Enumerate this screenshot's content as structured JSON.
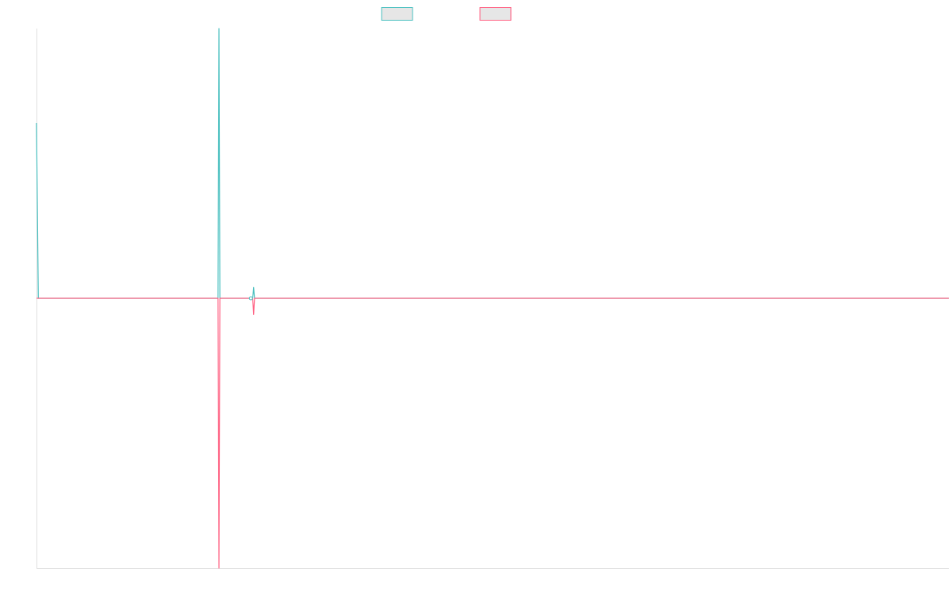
{
  "chart_data": {
    "type": "line",
    "title": "",
    "xlabel": "",
    "ylabel": "",
    "grid": false,
    "legend_position": "top-center",
    "xlim": [
      0,
      1000
    ],
    "ylim": [
      -100,
      100
    ],
    "series": [
      {
        "color": "#4bc0c0",
        "x": [
          0,
          2,
          196,
          198,
          199,
          200,
          201,
          202,
          204,
          234,
          235,
          236,
          237,
          238,
          239,
          240,
          1000
        ],
        "y": [
          65,
          0,
          0,
          0,
          0,
          100,
          0,
          0,
          0,
          0,
          0,
          0,
          0,
          4,
          0,
          0,
          0
        ]
      },
      {
        "color": "#ff6384",
        "x": [
          0,
          2,
          196,
          198,
          199,
          200,
          201,
          202,
          204,
          234,
          235,
          236,
          237,
          238,
          239,
          240,
          1000
        ],
        "y": [
          0,
          0,
          0,
          0,
          0,
          -100,
          0,
          0,
          0,
          0,
          0,
          0,
          0,
          -6,
          0,
          0,
          0
        ]
      }
    ],
    "markers": [
      {
        "series": 0,
        "x": 235,
        "y": 0
      }
    ]
  }
}
